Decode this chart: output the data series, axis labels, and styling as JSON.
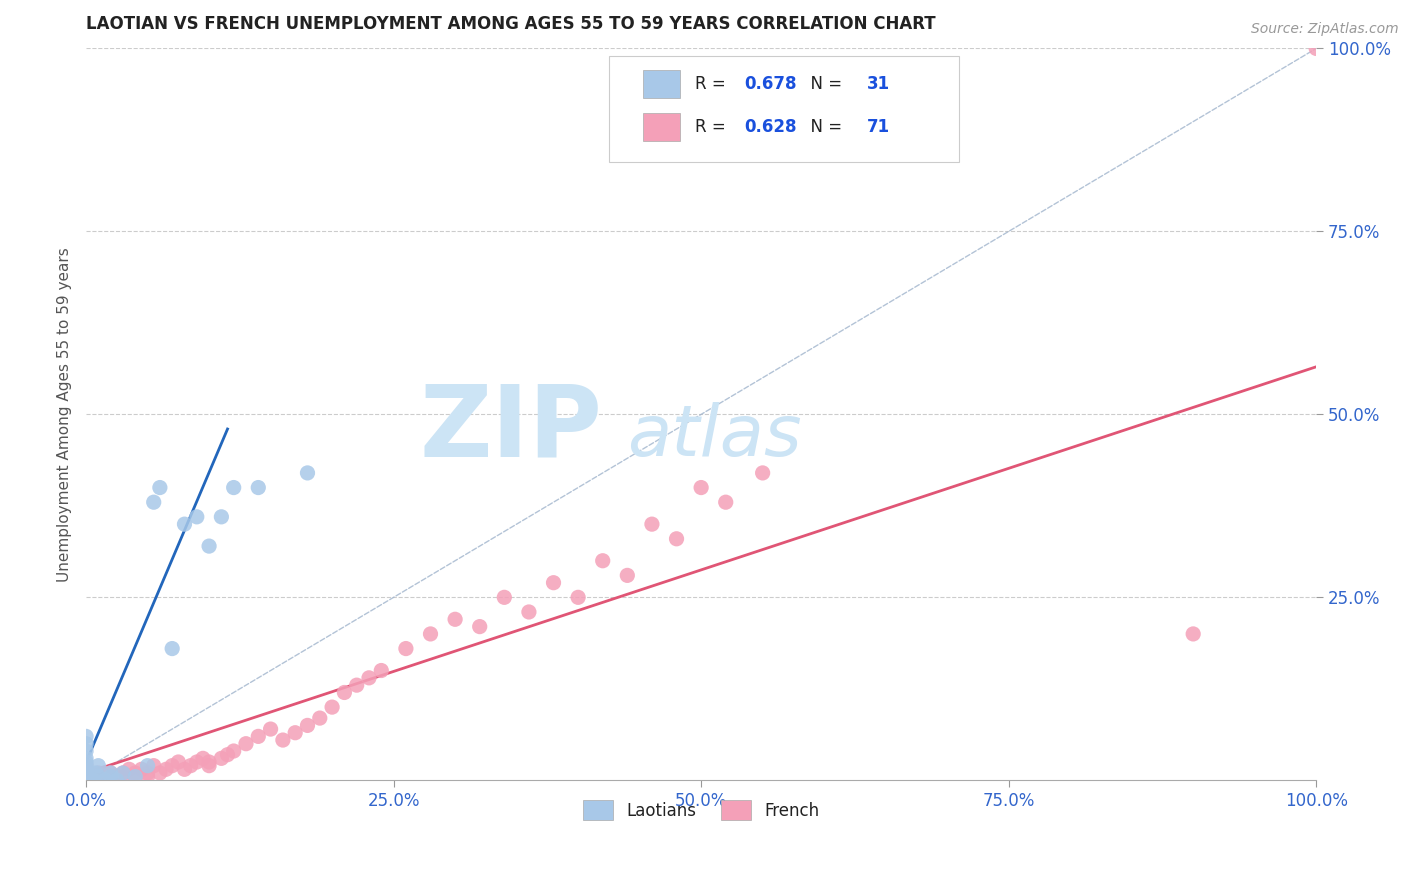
{
  "title": "LAOTIAN VS FRENCH UNEMPLOYMENT AMONG AGES 55 TO 59 YEARS CORRELATION CHART",
  "source": "Source: ZipAtlas.com",
  "ylabel": "Unemployment Among Ages 55 to 59 years",
  "xlim": [
    0,
    1.0
  ],
  "ylim": [
    0,
    1.0
  ],
  "xtick_labels": [
    "0.0%",
    "25.0%",
    "50.0%",
    "75.0%",
    "100.0%"
  ],
  "xtick_vals": [
    0.0,
    0.25,
    0.5,
    0.75,
    1.0
  ],
  "ytick_labels": [
    "100.0%",
    "75.0%",
    "50.0%",
    "25.0%"
  ],
  "ytick_vals": [
    1.0,
    0.75,
    0.5,
    0.25
  ],
  "laotian_color": "#a8c8e8",
  "french_color": "#f4a0b8",
  "laotian_R": 0.678,
  "laotian_N": 31,
  "french_R": 0.628,
  "french_N": 71,
  "laotian_trend_color": "#2266bb",
  "french_trend_color": "#e05575",
  "ref_line_color": "#a0b4cc",
  "watermark_color": "#cce4f5",
  "watermark_zip": "ZIP",
  "watermark_atlas": "atlas",
  "legend_R_color": "#1a50dd",
  "laotian_scatter_x": [
    0.0,
    0.0,
    0.0,
    0.0,
    0.0,
    0.0,
    0.0,
    0.0,
    0.0,
    0.0,
    0.005,
    0.008,
    0.01,
    0.01,
    0.015,
    0.02,
    0.02,
    0.025,
    0.03,
    0.04,
    0.05,
    0.055,
    0.06,
    0.07,
    0.08,
    0.09,
    0.1,
    0.11,
    0.12,
    0.14,
    0.18
  ],
  "laotian_scatter_y": [
    0.0,
    0.005,
    0.01,
    0.015,
    0.02,
    0.025,
    0.03,
    0.04,
    0.05,
    0.06,
    0.0,
    0.01,
    0.005,
    0.02,
    0.0,
    0.005,
    0.01,
    0.0,
    0.01,
    0.005,
    0.02,
    0.38,
    0.4,
    0.18,
    0.35,
    0.36,
    0.32,
    0.36,
    0.4,
    0.4,
    0.42
  ],
  "french_scatter_x": [
    0.0,
    0.0,
    0.0,
    0.0,
    0.0,
    0.0,
    0.0,
    0.0,
    0.0,
    0.0,
    0.005,
    0.008,
    0.01,
    0.01,
    0.015,
    0.015,
    0.02,
    0.02,
    0.025,
    0.025,
    0.03,
    0.03,
    0.035,
    0.04,
    0.04,
    0.045,
    0.05,
    0.05,
    0.055,
    0.06,
    0.065,
    0.07,
    0.075,
    0.08,
    0.085,
    0.09,
    0.095,
    0.1,
    0.1,
    0.11,
    0.115,
    0.12,
    0.13,
    0.14,
    0.15,
    0.16,
    0.17,
    0.18,
    0.19,
    0.2,
    0.21,
    0.22,
    0.23,
    0.24,
    0.26,
    0.28,
    0.3,
    0.32,
    0.34,
    0.36,
    0.38,
    0.4,
    0.42,
    0.44,
    0.46,
    0.48,
    0.5,
    0.52,
    0.55,
    0.9,
    1.0
  ],
  "french_scatter_y": [
    0.0,
    0.0,
    0.0,
    0.0,
    0.005,
    0.005,
    0.01,
    0.01,
    0.015,
    0.02,
    0.0,
    0.005,
    0.0,
    0.01,
    0.005,
    0.01,
    0.005,
    0.01,
    0.0,
    0.005,
    0.005,
    0.01,
    0.015,
    0.005,
    0.01,
    0.015,
    0.005,
    0.01,
    0.02,
    0.01,
    0.015,
    0.02,
    0.025,
    0.015,
    0.02,
    0.025,
    0.03,
    0.02,
    0.025,
    0.03,
    0.035,
    0.04,
    0.05,
    0.06,
    0.07,
    0.055,
    0.065,
    0.075,
    0.085,
    0.1,
    0.12,
    0.13,
    0.14,
    0.15,
    0.18,
    0.2,
    0.22,
    0.21,
    0.25,
    0.23,
    0.27,
    0.25,
    0.3,
    0.28,
    0.35,
    0.33,
    0.4,
    0.38,
    0.42,
    0.2,
    1.0
  ],
  "laotian_trend_x": [
    0.0,
    0.115
  ],
  "laotian_trend_y": [
    0.025,
    0.48
  ],
  "french_trend_x": [
    0.0,
    1.0
  ],
  "french_trend_y": [
    0.01,
    0.565
  ],
  "ref_line_x": [
    0.0,
    1.0
  ],
  "ref_line_y": [
    0.0,
    1.0
  ]
}
